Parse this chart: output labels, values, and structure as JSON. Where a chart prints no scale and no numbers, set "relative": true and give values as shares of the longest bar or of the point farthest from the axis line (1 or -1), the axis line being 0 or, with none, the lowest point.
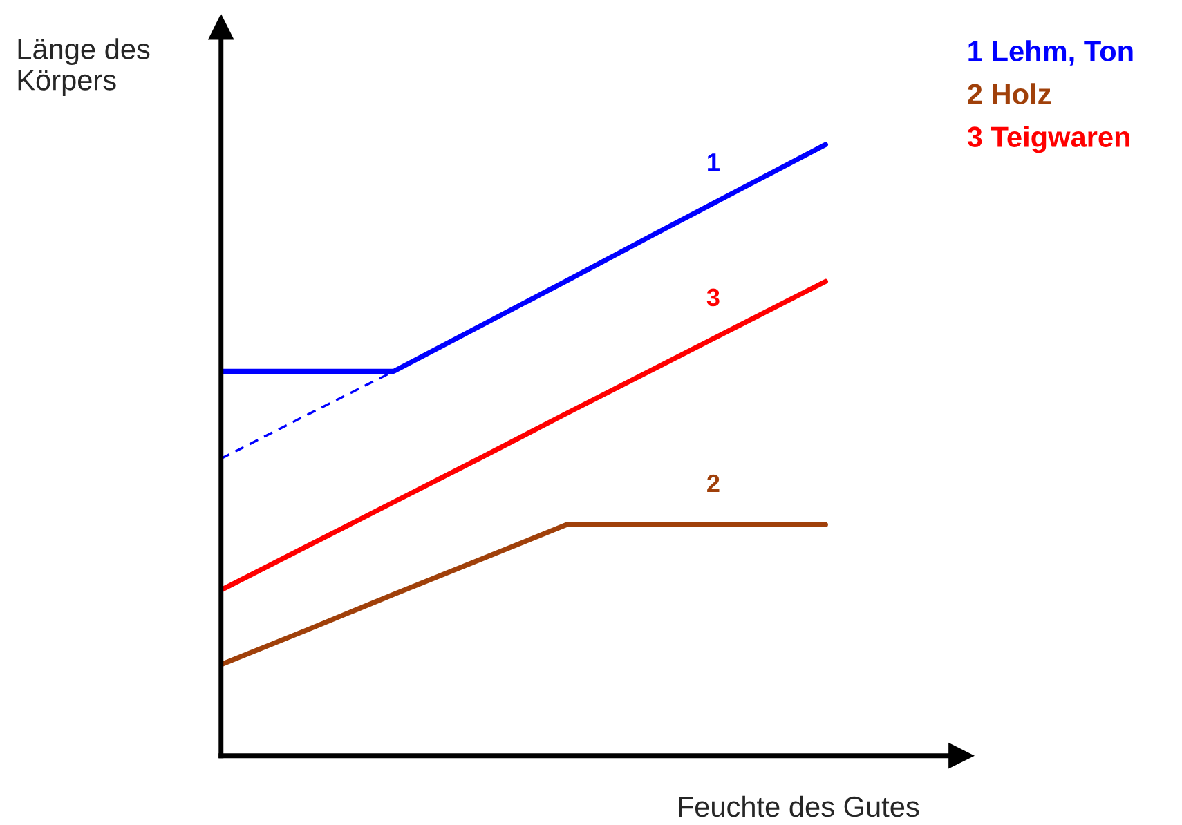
{
  "chart_data": {
    "type": "line",
    "relative": true,
    "xlabel": "Feuchte des Gutes",
    "ylabel": "Länge des\nKörpers",
    "marker": "none",
    "categories": [
      null,
      null,
      null,
      null,
      null,
      null,
      null,
      null
    ],
    "series": [
      {
        "name": "1",
        "color": "#0000ff",
        "values": [
          0.629,
          0.629,
          0.629,
          0.703,
          0.777,
          0.852,
          0.926,
          1.0
        ]
      },
      {
        "name": "2",
        "color": "#a0400a",
        "values": [
          0.149,
          0.206,
          0.264,
          0.321,
          0.378,
          0.378,
          0.378,
          0.378
        ]
      },
      {
        "name": "3",
        "color": "#ff0000",
        "values": [
          0.271,
          0.343,
          0.415,
          0.487,
          0.56,
          0.632,
          0.704,
          0.776
        ]
      },
      {
        "color": "#0000ff",
        "line_style": "dashed",
        "values": [
          0.486,
          0.558,
          0.629,
          null,
          null,
          null,
          null,
          null
        ]
      }
    ],
    "annotations": [
      "1 Lehm, Ton",
      "2 Holz",
      "3 Teigwaren"
    ]
  }
}
